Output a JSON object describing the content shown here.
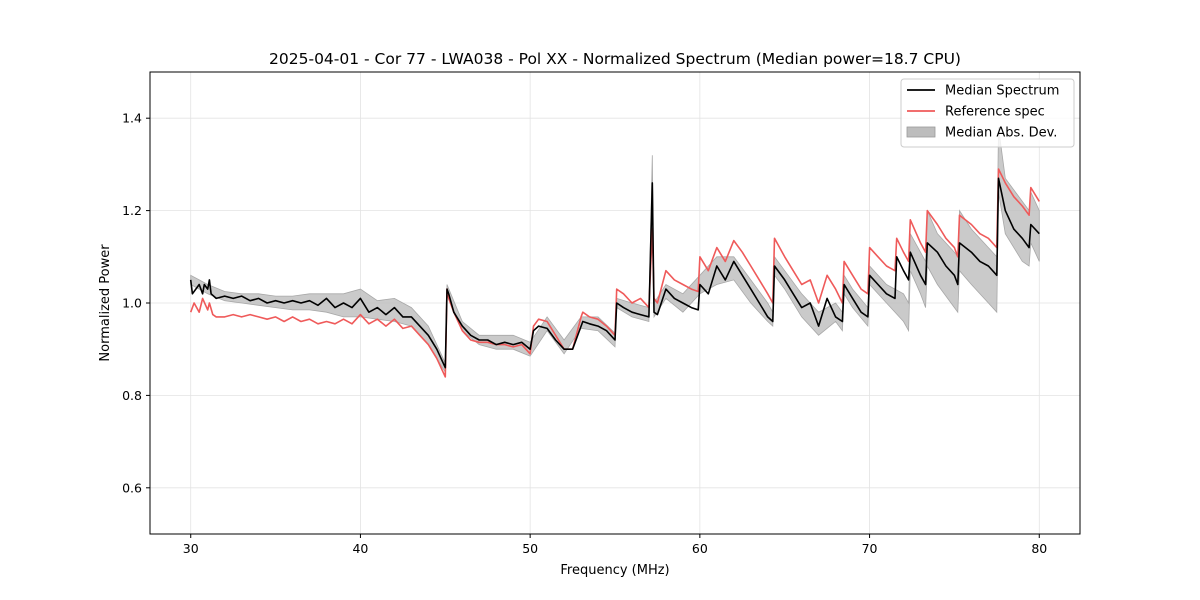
{
  "chart_data": {
    "type": "line",
    "title": "2025-04-01 - Cor 77 - LWA038 - Pol XX - Normalized Spectrum (Median power=18.7 CPU)",
    "xlabel": "Frequency (MHz)",
    "ylabel": "Normalized Power",
    "xlim": [
      27.6,
      82.4
    ],
    "ylim": [
      0.5,
      1.5
    ],
    "xticks": [
      30,
      40,
      50,
      60,
      70,
      80
    ],
    "yticks": [
      0.6,
      0.8,
      1.0,
      1.2,
      1.4
    ],
    "xtick_labels": [
      "30",
      "40",
      "50",
      "60",
      "70",
      "80"
    ],
    "ytick_labels": [
      "0.6",
      "0.8",
      "1.0",
      "1.2",
      "1.4"
    ],
    "grid": true,
    "legend_position": "top-right",
    "legend": [
      "Median Spectrum",
      "Reference spec",
      "Median Abs. Dev."
    ],
    "colors": {
      "median": "#000000",
      "reference": "#ef5a5a",
      "mad": "#bdbdbd"
    },
    "series": [
      {
        "name": "Median Spectrum",
        "x": [
          30.0,
          30.1,
          30.5,
          30.7,
          30.8,
          31.0,
          31.1,
          31.2,
          31.5,
          32.0,
          32.5,
          33.0,
          33.5,
          34.0,
          34.5,
          35.0,
          35.5,
          36.0,
          36.5,
          37.0,
          37.5,
          38.0,
          38.5,
          39.0,
          39.5,
          40.0,
          40.5,
          41.0,
          41.5,
          42.0,
          42.5,
          43.0,
          43.5,
          44.0,
          44.5,
          45.0,
          45.1,
          45.2,
          45.5,
          46.0,
          46.5,
          47.0,
          47.5,
          48.0,
          48.5,
          49.0,
          49.5,
          50.0,
          50.2,
          50.5,
          51.0,
          51.5,
          52.0,
          52.5,
          53.0,
          53.1,
          53.5,
          54.0,
          54.5,
          55.0,
          55.1,
          55.5,
          56.0,
          56.5,
          57.0,
          57.2,
          57.3,
          57.5,
          58.0,
          58.5,
          59.0,
          59.5,
          59.9,
          60.0,
          60.5,
          61.0,
          61.5,
          62.0,
          62.5,
          63.0,
          63.5,
          64.0,
          64.3,
          64.4,
          65.0,
          65.5,
          66.0,
          66.5,
          67.0,
          67.5,
          68.0,
          68.4,
          68.5,
          69.0,
          69.5,
          69.9,
          70.0,
          70.5,
          71.0,
          71.5,
          71.6,
          72.0,
          72.3,
          72.4,
          73.0,
          73.3,
          73.4,
          74.0,
          74.5,
          75.0,
          75.2,
          75.3,
          76.0,
          76.5,
          77.0,
          77.5,
          77.6,
          78.0,
          78.5,
          79.0,
          79.4,
          79.5,
          80.0
        ],
        "values": [
          1.05,
          1.02,
          1.04,
          1.02,
          1.04,
          1.03,
          1.05,
          1.02,
          1.01,
          1.015,
          1.01,
          1.015,
          1.005,
          1.01,
          1.0,
          1.005,
          1.0,
          1.005,
          1.0,
          1.005,
          0.995,
          1.01,
          0.99,
          1.0,
          0.99,
          1.01,
          0.98,
          0.99,
          0.975,
          0.99,
          0.97,
          0.97,
          0.95,
          0.93,
          0.9,
          0.86,
          1.03,
          1.02,
          0.98,
          0.95,
          0.93,
          0.92,
          0.92,
          0.91,
          0.915,
          0.91,
          0.915,
          0.9,
          0.94,
          0.95,
          0.945,
          0.92,
          0.9,
          0.9,
          0.95,
          0.96,
          0.955,
          0.95,
          0.94,
          0.92,
          1.0,
          0.99,
          0.98,
          0.975,
          0.97,
          1.26,
          0.98,
          0.975,
          1.03,
          1.01,
          1.0,
          0.99,
          0.985,
          1.04,
          1.02,
          1.08,
          1.05,
          1.09,
          1.06,
          1.03,
          1.0,
          0.97,
          0.96,
          1.08,
          1.05,
          1.02,
          0.99,
          1.0,
          0.95,
          1.01,
          0.97,
          0.96,
          1.04,
          1.01,
          0.98,
          0.97,
          1.06,
          1.04,
          1.02,
          1.01,
          1.1,
          1.07,
          1.05,
          1.11,
          1.06,
          1.04,
          1.13,
          1.11,
          1.08,
          1.06,
          1.04,
          1.13,
          1.11,
          1.09,
          1.08,
          1.06,
          1.27,
          1.2,
          1.16,
          1.14,
          1.12,
          1.17,
          1.15
        ]
      },
      {
        "name": "Reference spec",
        "x": [
          30.0,
          30.2,
          30.5,
          30.7,
          31.0,
          31.1,
          31.3,
          31.5,
          32.0,
          32.5,
          33.0,
          33.5,
          34.0,
          34.5,
          35.0,
          35.5,
          36.0,
          36.5,
          37.0,
          37.5,
          38.0,
          38.5,
          39.0,
          39.5,
          40.0,
          40.5,
          41.0,
          41.5,
          42.0,
          42.5,
          43.0,
          43.5,
          44.0,
          44.5,
          45.0,
          45.1,
          45.2,
          45.5,
          46.0,
          46.5,
          47.0,
          47.5,
          48.0,
          48.5,
          49.0,
          49.5,
          50.0,
          50.2,
          50.5,
          51.0,
          51.5,
          52.0,
          52.5,
          53.0,
          53.1,
          53.5,
          54.0,
          54.5,
          55.0,
          55.1,
          55.5,
          56.0,
          56.5,
          57.0,
          57.2,
          57.3,
          57.5,
          58.0,
          58.5,
          59.0,
          59.5,
          59.9,
          60.0,
          60.5,
          61.0,
          61.5,
          62.0,
          62.5,
          63.0,
          63.5,
          64.0,
          64.3,
          64.4,
          65.0,
          65.5,
          66.0,
          66.5,
          67.0,
          67.5,
          68.0,
          68.4,
          68.5,
          69.0,
          69.5,
          69.9,
          70.0,
          70.5,
          71.0,
          71.5,
          71.6,
          72.0,
          72.3,
          72.4,
          73.0,
          73.3,
          73.4,
          74.0,
          74.5,
          75.0,
          75.2,
          75.3,
          76.0,
          76.5,
          77.0,
          77.5,
          77.6,
          78.0,
          78.5,
          79.0,
          79.4,
          79.5,
          80.0
        ],
        "values": [
          0.98,
          1.0,
          0.98,
          1.01,
          0.985,
          1.0,
          0.975,
          0.97,
          0.97,
          0.975,
          0.97,
          0.975,
          0.97,
          0.965,
          0.97,
          0.96,
          0.97,
          0.96,
          0.965,
          0.955,
          0.96,
          0.955,
          0.965,
          0.955,
          0.975,
          0.955,
          0.965,
          0.95,
          0.965,
          0.945,
          0.95,
          0.93,
          0.91,
          0.88,
          0.84,
          1.03,
          1.01,
          0.98,
          0.94,
          0.92,
          0.915,
          0.915,
          0.91,
          0.91,
          0.905,
          0.91,
          0.89,
          0.95,
          0.965,
          0.96,
          0.93,
          0.9,
          0.9,
          0.97,
          0.98,
          0.97,
          0.965,
          0.95,
          0.93,
          1.03,
          1.02,
          1.0,
          1.01,
          0.99,
          1.16,
          1.01,
          1.0,
          1.07,
          1.05,
          1.04,
          1.03,
          1.025,
          1.1,
          1.07,
          1.12,
          1.09,
          1.135,
          1.11,
          1.08,
          1.05,
          1.02,
          1.0,
          1.14,
          1.1,
          1.07,
          1.04,
          1.05,
          1.0,
          1.06,
          1.03,
          1.0,
          1.09,
          1.06,
          1.03,
          1.02,
          1.12,
          1.1,
          1.08,
          1.07,
          1.14,
          1.11,
          1.09,
          1.18,
          1.13,
          1.11,
          1.2,
          1.17,
          1.14,
          1.12,
          1.1,
          1.19,
          1.17,
          1.15,
          1.14,
          1.12,
          1.29,
          1.26,
          1.23,
          1.21,
          1.19,
          1.25,
          1.22
        ]
      },
      {
        "name": "Median Abs. Dev.",
        "x": [
          30.0,
          30.5,
          31.0,
          32.0,
          33.0,
          34.0,
          35.0,
          36.0,
          37.0,
          38.0,
          39.0,
          40.0,
          41.0,
          42.0,
          43.0,
          44.0,
          45.0,
          45.1,
          46.0,
          47.0,
          48.0,
          49.0,
          50.0,
          51.0,
          52.0,
          53.0,
          54.0,
          55.0,
          55.1,
          56.0,
          57.0,
          57.2,
          57.3,
          58.0,
          59.0,
          60.0,
          61.0,
          62.0,
          63.0,
          64.0,
          64.3,
          64.4,
          65.0,
          66.0,
          67.0,
          68.0,
          68.4,
          68.5,
          69.0,
          69.9,
          70.0,
          71.0,
          72.0,
          72.3,
          72.4,
          73.0,
          73.3,
          73.4,
          74.0,
          75.0,
          75.2,
          75.3,
          76.0,
          77.0,
          77.5,
          77.6,
          78.0,
          79.0,
          79.4,
          79.5,
          80.0
        ],
        "lower": [
          1.04,
          1.03,
          1.02,
          1.005,
          1.0,
          0.995,
          0.99,
          0.985,
          0.985,
          0.98,
          0.97,
          0.97,
          0.965,
          0.96,
          0.95,
          0.91,
          0.85,
          1.02,
          0.94,
          0.91,
          0.9,
          0.9,
          0.885,
          0.94,
          0.89,
          0.945,
          0.94,
          0.905,
          0.99,
          0.97,
          0.96,
          1.22,
          0.97,
          1.01,
          0.98,
          1.02,
          1.04,
          1.05,
          1.0,
          0.96,
          0.95,
          1.06,
          1.03,
          0.97,
          0.93,
          0.96,
          0.94,
          1.02,
          0.99,
          0.95,
          1.04,
          1.0,
          0.96,
          0.94,
          1.07,
          1.02,
          0.99,
          1.08,
          1.04,
          0.99,
          0.98,
          1.07,
          1.04,
          1.0,
          0.98,
          1.24,
          1.15,
          1.09,
          1.08,
          1.13,
          1.09
        ],
        "upper": [
          1.06,
          1.05,
          1.04,
          1.025,
          1.02,
          1.02,
          1.015,
          1.015,
          1.02,
          1.02,
          1.02,
          1.03,
          1.005,
          1.01,
          0.99,
          0.95,
          0.87,
          1.04,
          0.96,
          0.93,
          0.93,
          0.93,
          0.915,
          0.97,
          0.92,
          0.97,
          0.97,
          0.935,
          1.01,
          1.0,
          0.99,
          1.32,
          1.0,
          1.04,
          1.02,
          1.06,
          1.1,
          1.1,
          1.05,
          1.0,
          0.98,
          1.1,
          1.07,
          1.02,
          0.98,
          1.0,
          0.98,
          1.06,
          1.03,
          0.99,
          1.08,
          1.04,
          1.02,
          1.0,
          1.15,
          1.11,
          1.09,
          1.2,
          1.15,
          1.11,
          1.1,
          1.2,
          1.16,
          1.12,
          1.1,
          1.38,
          1.27,
          1.22,
          1.2,
          1.24,
          1.2
        ]
      }
    ]
  }
}
